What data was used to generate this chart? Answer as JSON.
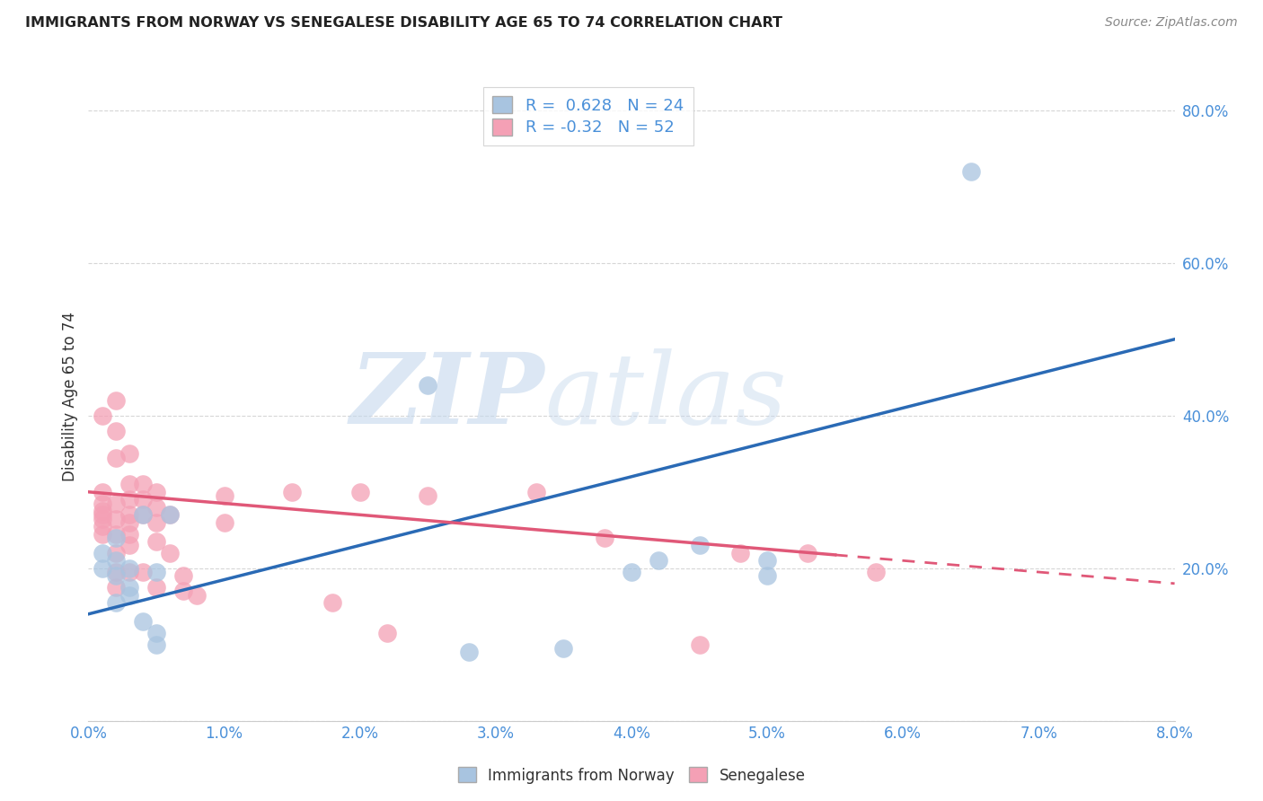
{
  "title": "IMMIGRANTS FROM NORWAY VS SENEGALESE DISABILITY AGE 65 TO 74 CORRELATION CHART",
  "source": "Source: ZipAtlas.com",
  "ylabel": "Disability Age 65 to 74",
  "xlim": [
    0.0,
    0.08
  ],
  "ylim": [
    0.0,
    0.85
  ],
  "xticks": [
    0.0,
    0.01,
    0.02,
    0.03,
    0.04,
    0.05,
    0.06,
    0.07,
    0.08
  ],
  "yticks": [
    0.0,
    0.2,
    0.4,
    0.6,
    0.8
  ],
  "ytick_labels": [
    "",
    "20.0%",
    "40.0%",
    "60.0%",
    "80.0%"
  ],
  "xtick_labels": [
    "0.0%",
    "1.0%",
    "2.0%",
    "3.0%",
    "4.0%",
    "5.0%",
    "6.0%",
    "7.0%",
    "8.0%"
  ],
  "norway_color": "#a8c4e0",
  "senegal_color": "#f4a0b5",
  "norway_line_color": "#2a6ab5",
  "senegal_line_color": "#e05878",
  "norway_R": 0.628,
  "norway_N": 24,
  "senegal_R": -0.32,
  "senegal_N": 52,
  "watermark_zip": "ZIP",
  "watermark_atlas": "atlas",
  "legend_label_norway": "Immigrants from Norway",
  "legend_label_senegal": "Senegalese",
  "norway_points_x": [
    0.001,
    0.001,
    0.002,
    0.002,
    0.002,
    0.002,
    0.003,
    0.003,
    0.003,
    0.004,
    0.004,
    0.005,
    0.005,
    0.005,
    0.006,
    0.025,
    0.028,
    0.035,
    0.04,
    0.042,
    0.045,
    0.05,
    0.05,
    0.065
  ],
  "norway_points_y": [
    0.22,
    0.2,
    0.24,
    0.19,
    0.21,
    0.155,
    0.175,
    0.2,
    0.165,
    0.27,
    0.13,
    0.115,
    0.1,
    0.195,
    0.27,
    0.44,
    0.09,
    0.095,
    0.195,
    0.21,
    0.23,
    0.21,
    0.19,
    0.72
  ],
  "senegal_points_x": [
    0.001,
    0.001,
    0.001,
    0.001,
    0.001,
    0.001,
    0.001,
    0.001,
    0.002,
    0.002,
    0.002,
    0.002,
    0.002,
    0.002,
    0.002,
    0.002,
    0.002,
    0.003,
    0.003,
    0.003,
    0.003,
    0.003,
    0.003,
    0.003,
    0.003,
    0.004,
    0.004,
    0.004,
    0.004,
    0.005,
    0.005,
    0.005,
    0.005,
    0.005,
    0.006,
    0.006,
    0.007,
    0.007,
    0.008,
    0.01,
    0.01,
    0.015,
    0.018,
    0.02,
    0.022,
    0.025,
    0.033,
    0.038,
    0.045,
    0.048,
    0.053,
    0.058
  ],
  "senegal_points_y": [
    0.3,
    0.285,
    0.275,
    0.27,
    0.265,
    0.255,
    0.245,
    0.4,
    0.42,
    0.38,
    0.345,
    0.285,
    0.265,
    0.245,
    0.22,
    0.195,
    0.175,
    0.35,
    0.31,
    0.29,
    0.27,
    0.26,
    0.245,
    0.23,
    0.195,
    0.31,
    0.29,
    0.27,
    0.195,
    0.3,
    0.28,
    0.26,
    0.235,
    0.175,
    0.27,
    0.22,
    0.19,
    0.17,
    0.165,
    0.295,
    0.26,
    0.3,
    0.155,
    0.3,
    0.115,
    0.295,
    0.3,
    0.24,
    0.1,
    0.22,
    0.22,
    0.195
  ],
  "background_color": "#ffffff",
  "grid_color": "#cccccc",
  "norway_line_y0": 0.14,
  "norway_line_y1": 0.5,
  "senegal_line_y0": 0.3,
  "senegal_line_y1": 0.18
}
